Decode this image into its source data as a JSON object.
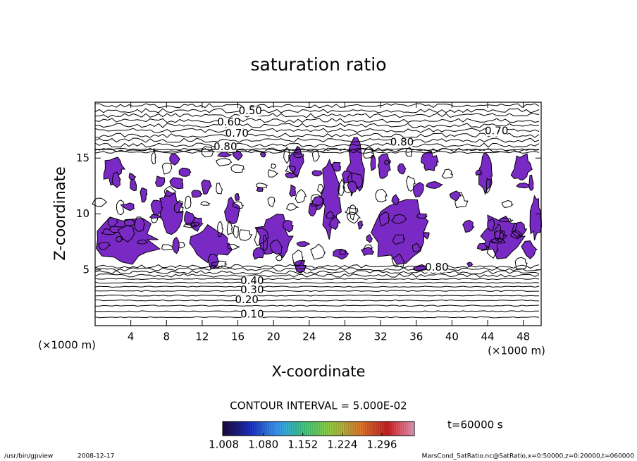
{
  "chart_data": {
    "type": "contour",
    "title": "saturation ratio",
    "x_label": "X-coordinate",
    "y_label": "Z-coordinate",
    "x_unit": "(×1000 m)",
    "y_unit": "(×1000 m)",
    "xlim": [
      0,
      50
    ],
    "ylim": [
      0,
      20
    ],
    "xticks": [
      4,
      8,
      12,
      16,
      20,
      24,
      28,
      32,
      36,
      40,
      44,
      48
    ],
    "yticks": [
      5,
      10,
      15
    ],
    "contour_interval_label": "CONTOUR INTERVAL = 5.000E-02",
    "contour_labels": [
      {
        "x": 17.4,
        "z": 19.2,
        "value": 0.5,
        "label": "0.50"
      },
      {
        "x": 15.0,
        "z": 18.2,
        "value": 0.6,
        "label": "0.60"
      },
      {
        "x": 15.9,
        "z": 17.2,
        "value": 0.7,
        "label": "0.70"
      },
      {
        "x": 14.6,
        "z": 16.0,
        "value": 0.8,
        "label": "0.80"
      },
      {
        "x": 45.0,
        "z": 17.4,
        "value": 0.7,
        "label": "0.70"
      },
      {
        "x": 34.4,
        "z": 16.4,
        "value": 0.8,
        "label": "0.80"
      },
      {
        "x": 38.3,
        "z": 5.2,
        "value": 0.8,
        "label": "0.80"
      },
      {
        "x": 17.6,
        "z": 4.0,
        "value": 0.4,
        "label": "0.40"
      },
      {
        "x": 17.6,
        "z": 3.2,
        "value": 0.3,
        "label": "0.30"
      },
      {
        "x": 17.0,
        "z": 2.3,
        "value": 0.2,
        "label": "0.20"
      },
      {
        "x": 17.6,
        "z": 1.0,
        "value": 0.1,
        "label": "0.10"
      }
    ],
    "fill_color": "#7a2ac4",
    "colorbar": {
      "lim": [
        1.006,
        1.355
      ],
      "ticks": [
        1.008,
        {
          "value": 1.08,
          "label": "1.080"
        },
        1.152,
        1.224,
        1.296
      ],
      "colors": [
        "#1a0a40",
        "#1d2fc0",
        "#3aa0ff",
        "#40d080",
        "#a0d040",
        "#e08030",
        "#d02020",
        "#f0a0c0"
      ]
    },
    "time_label": "t=60000 s",
    "footer_left": "/usr/bin/gpview",
    "footer_date": "2008-12-17",
    "footer_right": "MarsCond_SatRatio.nc@SatRatio,x=0:50000,z=0:20000,t=060000"
  }
}
